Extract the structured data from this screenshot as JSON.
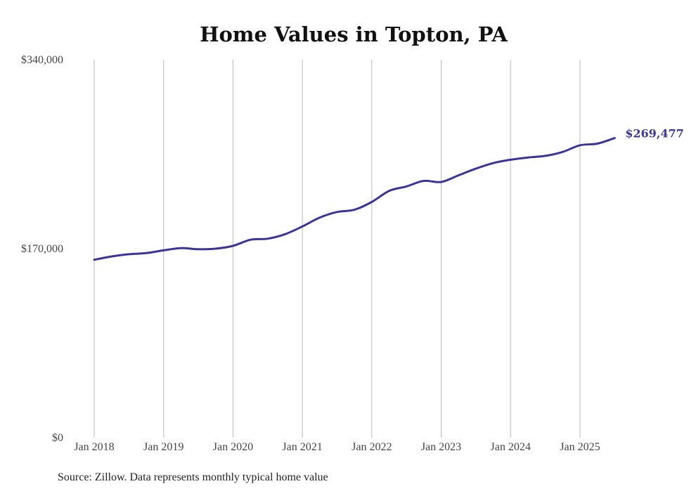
{
  "chart_data": {
    "type": "line",
    "title": "Home Values in Topton, PA",
    "source_note": "Source: Zillow. Data represents monthly typical home value",
    "ylim": [
      0,
      340000
    ],
    "y_ticks": [
      "$0",
      "$170,000",
      "$340,000"
    ],
    "x_ticks": [
      "Jan 2018",
      "Jan 2019",
      "Jan 2020",
      "Jan 2021",
      "Jan 2022",
      "Jan 2023",
      "Jan 2024",
      "Jan 2025"
    ],
    "grid": "vertical",
    "line_color": "#3a3596",
    "end_label": "$269,477",
    "series": [
      {
        "x": [
          "2018-01",
          "2018-04",
          "2018-07",
          "2018-10",
          "2019-01",
          "2019-04",
          "2019-07",
          "2019-10",
          "2020-01",
          "2020-04",
          "2020-07",
          "2020-10",
          "2021-01",
          "2021-04",
          "2021-07",
          "2021-10",
          "2022-01",
          "2022-04",
          "2022-07",
          "2022-10",
          "2023-01",
          "2023-04",
          "2023-07",
          "2023-10",
          "2024-01",
          "2024-04",
          "2024-07",
          "2024-10",
          "2025-01",
          "2025-04",
          "2025-07"
        ],
        "values": [
          160000,
          163000,
          165000,
          166000,
          168500,
          170500,
          169500,
          170000,
          172500,
          178000,
          179000,
          183000,
          190000,
          198000,
          203000,
          205000,
          212000,
          222000,
          226000,
          231000,
          230000,
          236000,
          242000,
          247000,
          250000,
          252000,
          253500,
          257000,
          263000,
          264500,
          269477
        ]
      }
    ]
  }
}
